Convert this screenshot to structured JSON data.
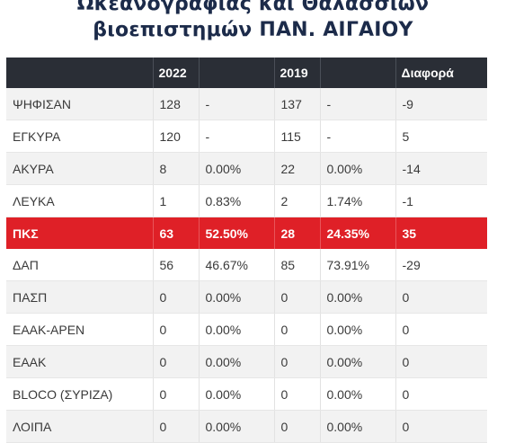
{
  "title": {
    "line1": "Ωκεανογραφίας και Θαλάσσιων",
    "line2": "βιοεπιστημών ΠΑΝ. ΑΙΓΑΙΟΥ"
  },
  "headers": [
    "",
    "2022",
    "",
    "2019",
    "",
    "Διαφορά"
  ],
  "rows": [
    [
      "ΨΗΦΙΣΑΝ",
      "128",
      "-",
      "137",
      "-",
      "-9"
    ],
    [
      "ΕΓΚΥΡΑ",
      "120",
      "-",
      "115",
      "-",
      "5"
    ],
    [
      "ΑΚΥΡΑ",
      "8",
      "0.00%",
      "22",
      "0.00%",
      "-14"
    ],
    [
      "ΛΕΥΚΑ",
      "1",
      "0.83%",
      "2",
      "1.74%",
      "-1"
    ],
    [
      "ΠΚΣ",
      "63",
      "52.50%",
      "28",
      "24.35%",
      "35"
    ],
    [
      "ΔΑΠ",
      "56",
      "46.67%",
      "85",
      "73.91%",
      "-29"
    ],
    [
      "ΠΑΣΠ",
      "0",
      "0.00%",
      "0",
      "0.00%",
      "0"
    ],
    [
      "ΕΑΑΚ-ΑΡΕΝ",
      "0",
      "0.00%",
      "0",
      "0.00%",
      "0"
    ],
    [
      "ΕΑΑΚ",
      "0",
      "0.00%",
      "0",
      "0.00%",
      "0"
    ],
    [
      "BLOCO (ΣΥΡΙΖΑ)",
      "0",
      "0.00%",
      "0",
      "0.00%",
      "0"
    ],
    [
      "ΛΟΙΠΑ",
      "0",
      "0.00%",
      "0",
      "0.00%",
      "0"
    ]
  ],
  "highlight_row": "ΠΚΣ",
  "colors": {
    "header_bg": "#2a2e36",
    "highlight_bg": "#df2027",
    "title": "#1c2b4a",
    "row_alt": "#f2f2f2"
  }
}
